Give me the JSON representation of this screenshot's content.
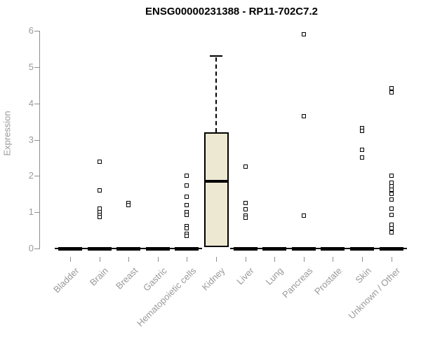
{
  "title": "ENSG00000231388 - RP11-702C7.2",
  "chart_data": {
    "type": "boxplot",
    "title": "ENSG00000231388 - RP11-702C7.2",
    "xlabel": "",
    "ylabel": "Expression",
    "ylim": [
      0,
      6
    ],
    "yticks": [
      "0",
      "1",
      "2",
      "3",
      "4",
      "5",
      "6"
    ],
    "grid": false,
    "legend": "none",
    "categories": [
      "Bladder",
      "Brain",
      "Breast",
      "Gastric",
      "Hematopoietic cells",
      "Kidney",
      "Liver",
      "Lung",
      "Pancreas",
      "Prostate",
      "Skin",
      "Unknown / Other"
    ],
    "series": [
      {
        "category": "Bladder",
        "q1": 0,
        "median": 0,
        "q3": 0,
        "whisker_low": 0,
        "whisker_high": 0,
        "outliers": []
      },
      {
        "category": "Brain",
        "q1": 0,
        "median": 0,
        "q3": 0,
        "whisker_low": 0,
        "whisker_high": 0,
        "outliers": [
          2.4,
          1.6,
          1.1,
          1.0,
          0.93,
          0.86
        ]
      },
      {
        "category": "Breast",
        "q1": 0,
        "median": 0,
        "q3": 0,
        "whisker_low": 0,
        "whisker_high": 0,
        "outliers": [
          1.25,
          1.19
        ]
      },
      {
        "category": "Gastric",
        "q1": 0,
        "median": 0,
        "q3": 0,
        "whisker_low": 0,
        "whisker_high": 0,
        "outliers": []
      },
      {
        "category": "Hematopoietic cells",
        "q1": 0,
        "median": 0,
        "q3": 0,
        "whisker_low": 0,
        "whisker_high": 0,
        "outliers": [
          2.0,
          1.73,
          1.42,
          1.2,
          1.0,
          0.93,
          0.62,
          0.56,
          0.4,
          0.34
        ]
      },
      {
        "category": "Kidney",
        "q1": 0.03,
        "median": 1.85,
        "q3": 3.2,
        "whisker_low": 0.03,
        "whisker_high": 5.3,
        "outliers": []
      },
      {
        "category": "Liver",
        "q1": 0,
        "median": 0,
        "q3": 0,
        "whisker_low": 0,
        "whisker_high": 0,
        "outliers": [
          2.25,
          1.25,
          1.08,
          0.9,
          0.84
        ]
      },
      {
        "category": "Lung",
        "q1": 0,
        "median": 0,
        "q3": 0,
        "whisker_low": 0,
        "whisker_high": 0,
        "outliers": []
      },
      {
        "category": "Pancreas",
        "q1": 0,
        "median": 0,
        "q3": 0,
        "whisker_low": 0,
        "whisker_high": 0,
        "outliers": [
          5.9,
          3.65,
          0.9
        ]
      },
      {
        "category": "Prostate",
        "q1": 0,
        "median": 0,
        "q3": 0,
        "whisker_low": 0,
        "whisker_high": 0,
        "outliers": []
      },
      {
        "category": "Skin",
        "q1": 0,
        "median": 0,
        "q3": 0,
        "whisker_low": 0,
        "whisker_high": 0,
        "outliers": [
          3.32,
          3.25,
          2.72,
          2.5
        ]
      },
      {
        "category": "Unknown / Other",
        "q1": 0,
        "median": 0,
        "q3": 0,
        "whisker_low": 0,
        "whisker_high": 0,
        "outliers": [
          4.42,
          4.3,
          2.0,
          1.82,
          1.72,
          1.63,
          1.5,
          1.35,
          1.1,
          0.93,
          0.66,
          0.55,
          0.44
        ]
      }
    ],
    "colors": {
      "box_fill": "#ede8d2",
      "box_border": "#000000",
      "median": "#000000",
      "outlier_fill": "#ffffff",
      "outlier_border": "#000000",
      "axis": "#8f8f8f",
      "tick_label": "#999999",
      "title": "#000000",
      "background": "#ffffff"
    }
  }
}
